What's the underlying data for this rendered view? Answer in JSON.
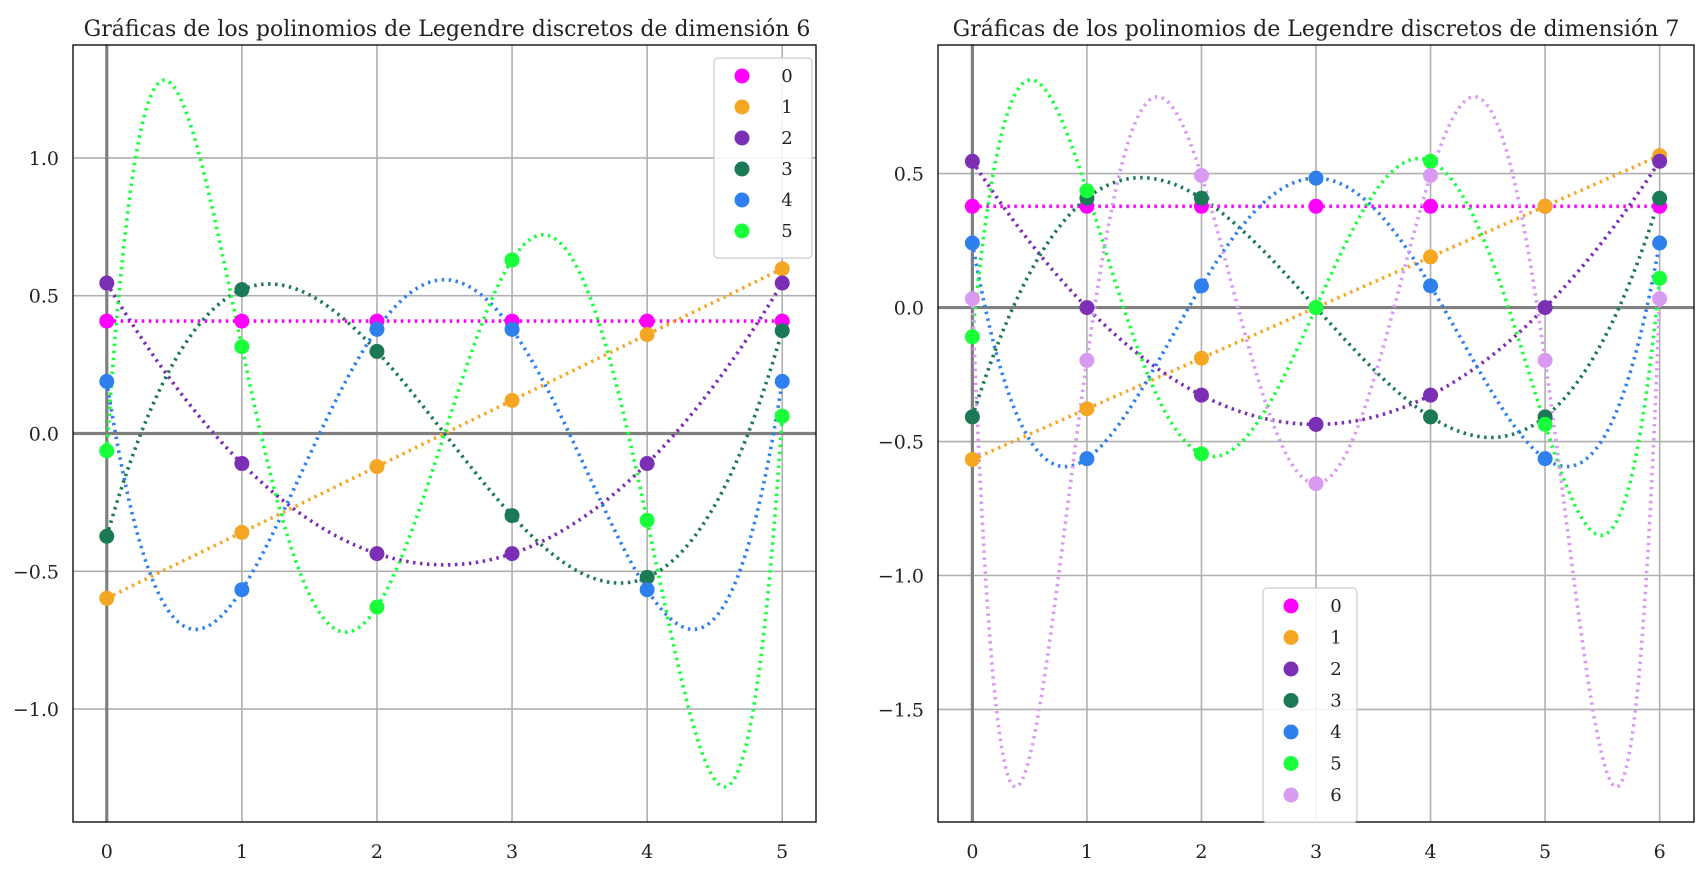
{
  "chart_data": [
    {
      "type": "line",
      "title": "Gráficas de los polinomios de Legendre discretos de dimensión 6",
      "xlabel": "",
      "ylabel": "",
      "x": [
        0,
        1,
        2,
        3,
        4,
        5
      ],
      "xticks": [
        "0",
        "1",
        "2",
        "3",
        "4",
        "5"
      ],
      "yticks": [
        -1.0,
        -0.5,
        0.0,
        0.5,
        1.0
      ],
      "ytick_labels": [
        "−1.0",
        "−0.5",
        "0.0",
        "0.5",
        "1.0"
      ],
      "xlim": [
        -0.25,
        5.25
      ],
      "ylim": [
        -1.41,
        1.41
      ],
      "grid": true,
      "legend_position": "top-right",
      "series": [
        {
          "name": "0",
          "color": "#ff00ff",
          "values": [
            0.408,
            0.408,
            0.408,
            0.408,
            0.408,
            0.408
          ]
        },
        {
          "name": "1",
          "color": "#f5a623",
          "values": [
            -0.598,
            -0.359,
            -0.12,
            0.12,
            0.359,
            0.598
          ]
        },
        {
          "name": "2",
          "color": "#7b2fb5",
          "values": [
            0.546,
            -0.109,
            -0.436,
            -0.436,
            -0.109,
            0.546
          ]
        },
        {
          "name": "3",
          "color": "#1b7a55",
          "values": [
            -0.373,
            0.522,
            0.298,
            -0.298,
            -0.522,
            0.373
          ]
        },
        {
          "name": "4",
          "color": "#2f80ed",
          "values": [
            0.189,
            -0.567,
            0.378,
            0.378,
            -0.567,
            0.189
          ]
        },
        {
          "name": "5",
          "color": "#19ff3a",
          "values": [
            -0.063,
            0.315,
            -0.63,
            0.63,
            -0.315,
            0.063
          ]
        }
      ]
    },
    {
      "type": "line",
      "title": "Gráficas de los polinomios de Legendre discretos de dimensión 7",
      "xlabel": "",
      "ylabel": "",
      "x": [
        0,
        1,
        2,
        3,
        4,
        5,
        6
      ],
      "xticks": [
        "0",
        "1",
        "2",
        "3",
        "4",
        "5",
        "6"
      ],
      "yticks": [
        -1.5,
        -1.0,
        -0.5,
        0.0,
        0.5
      ],
      "ytick_labels": [
        "−1.5",
        "−1.0",
        "−0.5",
        "0.0",
        "0.5"
      ],
      "xlim": [
        -0.3,
        6.3
      ],
      "ylim": [
        -1.92,
        0.98
      ],
      "grid": true,
      "legend_position": "lower-center",
      "series": [
        {
          "name": "0",
          "color": "#ff00ff",
          "values": [
            0.378,
            0.378,
            0.378,
            0.378,
            0.378,
            0.378,
            0.378
          ]
        },
        {
          "name": "1",
          "color": "#f5a623",
          "values": [
            -0.567,
            -0.378,
            -0.189,
            0.0,
            0.189,
            0.378,
            0.567
          ]
        },
        {
          "name": "2",
          "color": "#7b2fb5",
          "values": [
            0.546,
            0.0,
            -0.327,
            -0.436,
            -0.327,
            0.0,
            0.546
          ]
        },
        {
          "name": "3",
          "color": "#1b7a55",
          "values": [
            -0.408,
            0.408,
            0.408,
            0.0,
            -0.408,
            -0.408,
            0.408
          ]
        },
        {
          "name": "4",
          "color": "#2f80ed",
          "values": [
            0.241,
            -0.564,
            0.081,
            0.483,
            0.081,
            -0.564,
            0.241
          ]
        },
        {
          "name": "5",
          "color": "#19ff3a",
          "values": [
            -0.109,
            0.436,
            -0.546,
            0.0,
            0.546,
            -0.436,
            0.109
          ]
        },
        {
          "name": "6",
          "color": "#d99af2",
          "values": [
            0.033,
            -0.197,
            0.493,
            -0.657,
            0.493,
            -0.197,
            0.033
          ]
        }
      ]
    }
  ]
}
